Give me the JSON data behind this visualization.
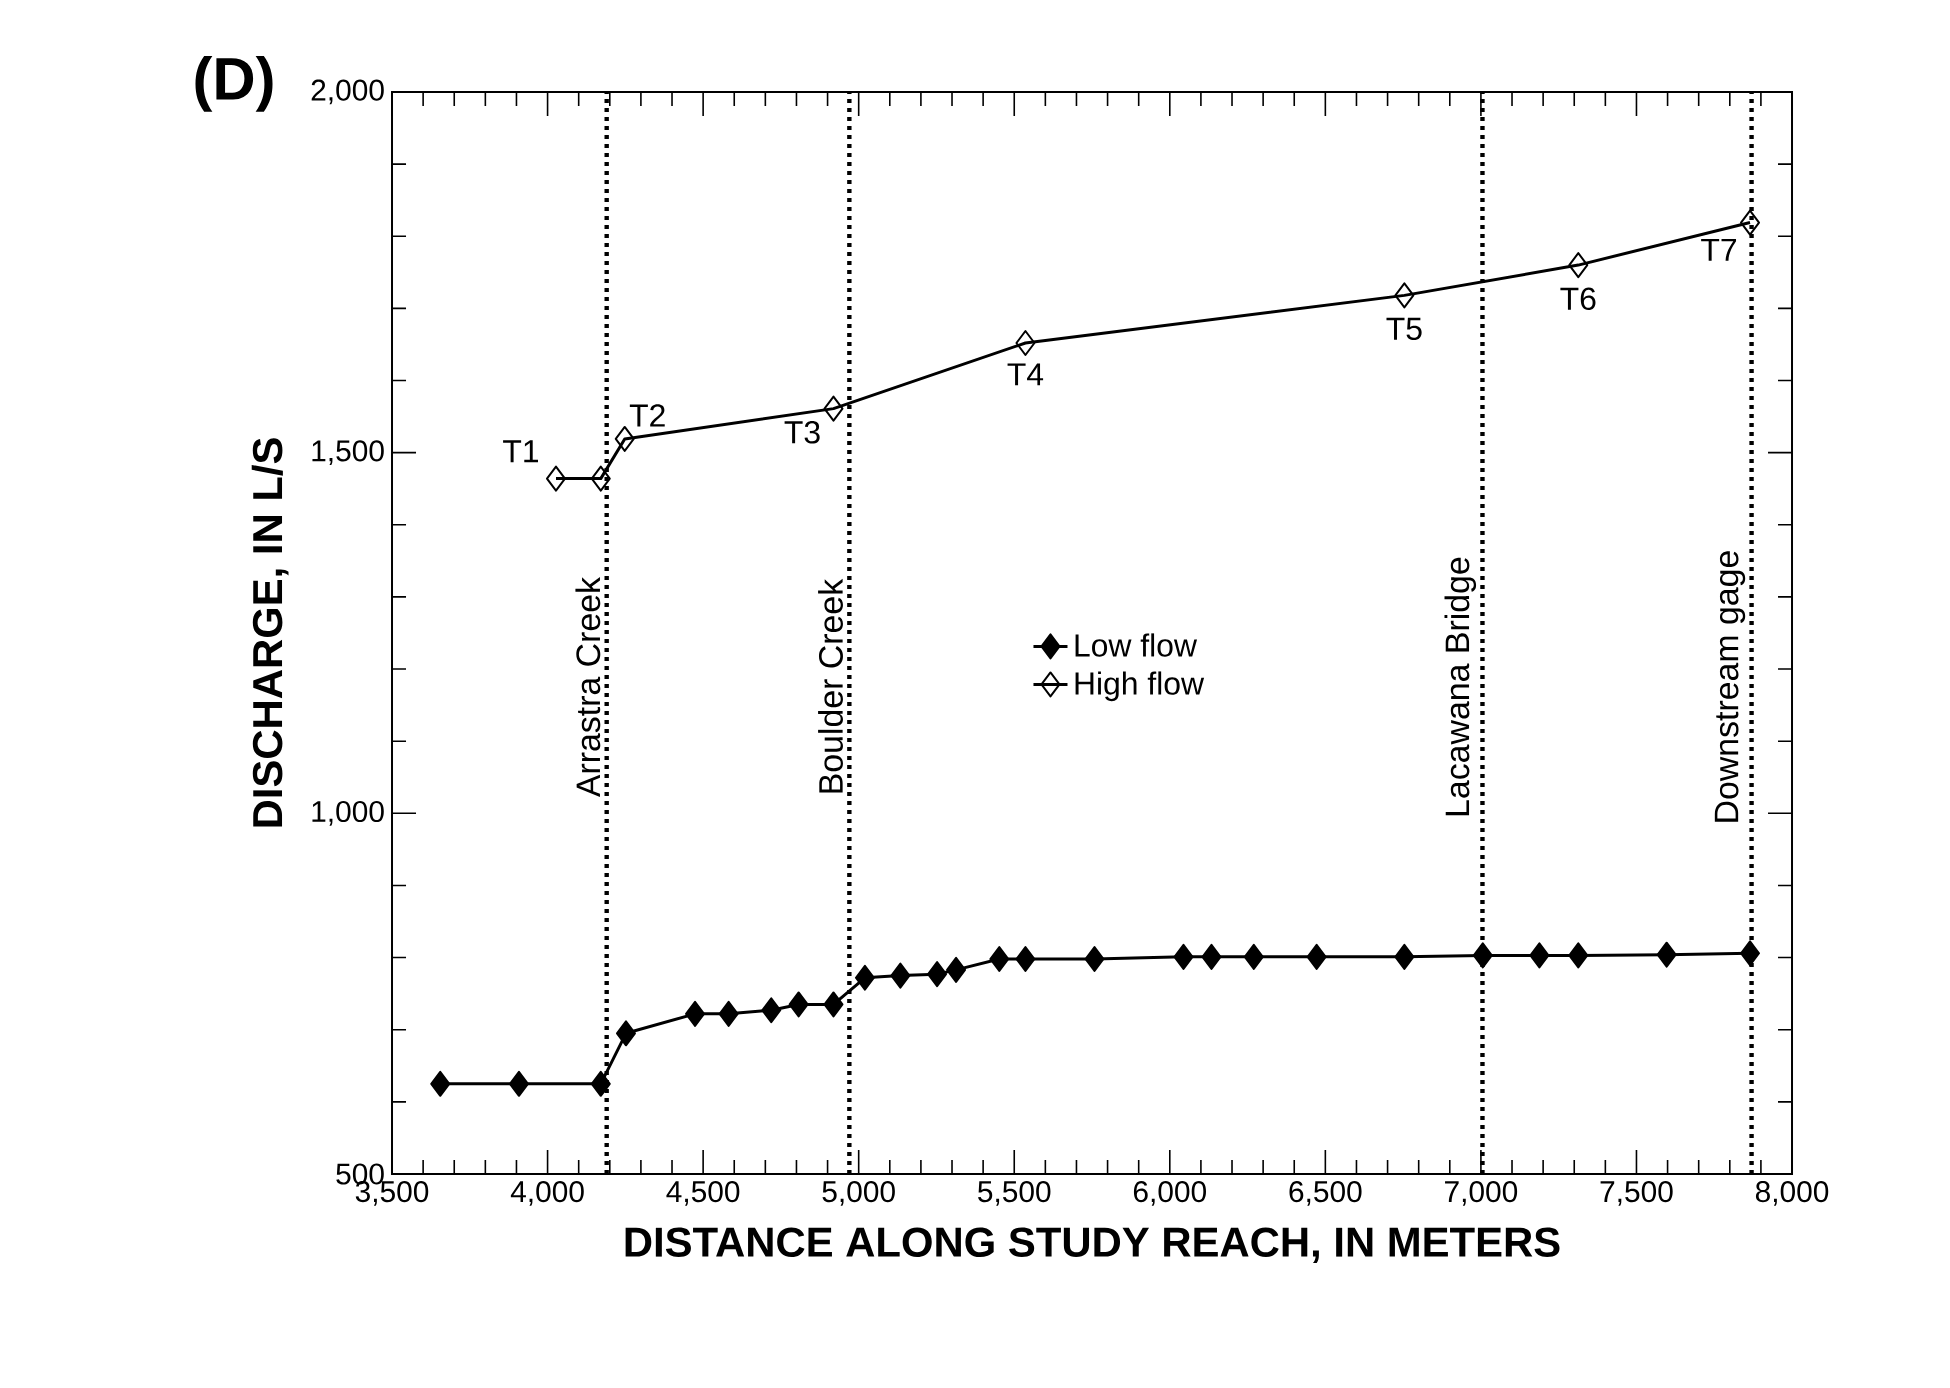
{
  "chart_data": {
    "type": "line",
    "title": "(D)",
    "xlabel": "DISTANCE ALONG STUDY REACH, IN METERS",
    "ylabel": "DISCHARGE, IN L/S",
    "xlim": [
      3500,
      8000
    ],
    "ylim": [
      500,
      2000
    ],
    "xticks": [
      {
        "value": 3500,
        "label": "3,500"
      },
      {
        "value": 4000,
        "label": "4,000"
      },
      {
        "value": 4500,
        "label": "4,500"
      },
      {
        "value": 5000,
        "label": "5,000"
      },
      {
        "value": 5500,
        "label": "5,500"
      },
      {
        "value": 6000,
        "label": "6,000"
      },
      {
        "value": 6500,
        "label": "6,500"
      },
      {
        "value": 7000,
        "label": "7,000"
      },
      {
        "value": 7500,
        "label": "7,500"
      },
      {
        "value": 8000,
        "label": "8,000"
      }
    ],
    "yticks": [
      500,
      {
        "value": 1000,
        "label": "1,000"
      },
      {
        "value": 1500,
        "label": "1,500"
      },
      {
        "value": 2000,
        "label": "2,000"
      }
    ],
    "marker": "diamond",
    "legend": "center",
    "line_style": "solid",
    "series": [
      {
        "name": "Low flow",
        "color": "#000000",
        "x": [
          3655,
          3908,
          4171,
          4252,
          4474,
          4582,
          4719,
          4807,
          4919,
          5020,
          5134,
          5252,
          5313,
          5452,
          5536,
          5758,
          6044,
          6134,
          6270,
          6472,
          6754,
          7006,
          7188,
          7313,
          7597,
          7865
        ],
        "values": [
          625,
          625,
          625,
          695,
          722,
          722,
          727,
          735,
          735,
          772,
          775,
          777,
          783,
          798,
          798,
          798,
          801,
          801,
          801,
          801,
          801,
          803,
          803,
          803,
          804,
          806
        ]
      },
      {
        "name": "High flow",
        "color": "#000000",
        "x": [
          4027,
          4171,
          4248,
          4919,
          5536,
          6754,
          7313,
          7865
        ],
        "values": [
          1464,
          1464,
          1519,
          1561,
          1652,
          1718,
          1760,
          1819
        ]
      }
    ],
    "ref_lines": [
      {
        "axis": "x",
        "value": 4190,
        "label": "Arrastra Creek",
        "color": "#000000",
        "line_style": "dotted"
      },
      {
        "axis": "x",
        "value": 4970,
        "label": "Boulder Creek",
        "color": "#000000",
        "line_style": "dotted"
      },
      {
        "axis": "x",
        "value": 7005,
        "label": "Lacawana Bridge",
        "color": "#000000",
        "line_style": "dotted"
      },
      {
        "axis": "x",
        "value": 7870,
        "label": "Downstream gage",
        "color": "#000000",
        "line_style": "dotted"
      }
    ],
    "annotations": [
      {
        "text": "T1",
        "x": 4027,
        "y": 1464
      },
      {
        "text": "T2",
        "x": 4248,
        "y": 1519
      },
      {
        "text": "T3",
        "x": 4919,
        "y": 1561
      },
      {
        "text": "T4",
        "x": 5536,
        "y": 1652
      },
      {
        "text": "T5",
        "x": 6754,
        "y": 1718
      },
      {
        "text": "T6",
        "x": 7313,
        "y": 1760
      },
      {
        "text": "T7",
        "x": 7865,
        "y": 1819
      }
    ]
  }
}
